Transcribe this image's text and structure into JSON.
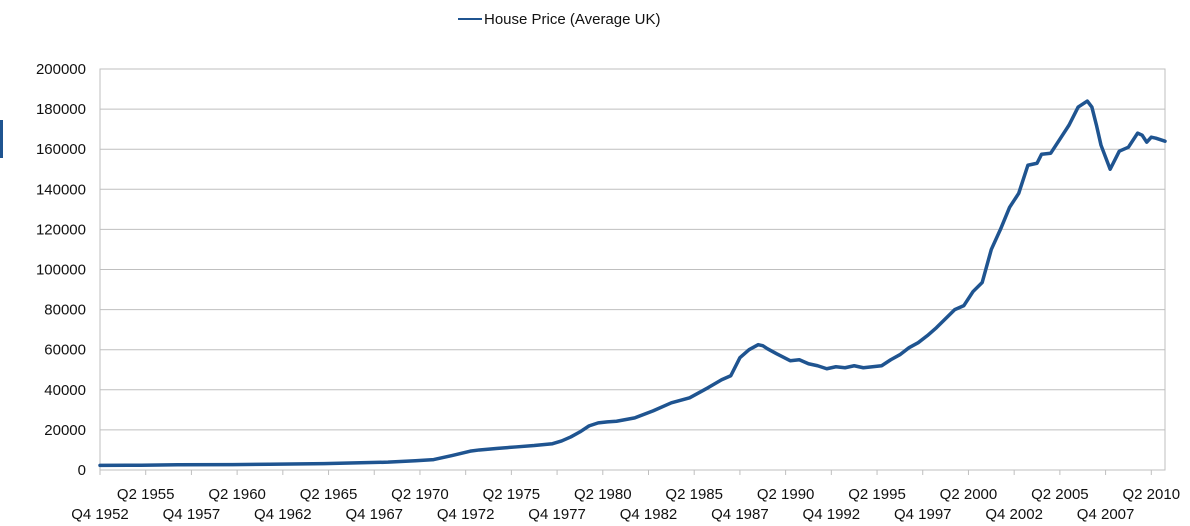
{
  "chart_data": {
    "type": "line",
    "title": "",
    "xlabel": "",
    "ylabel": "",
    "grid": true,
    "legend_placement": "top",
    "ylim": [
      0,
      200000
    ],
    "yticks": [
      0,
      20000,
      40000,
      60000,
      80000,
      100000,
      120000,
      140000,
      160000,
      180000,
      200000
    ],
    "xlim": [
      1952.75,
      2011.0
    ],
    "x_tick_labels": [
      {
        "x": 1952.75,
        "label": "Q4 1952",
        "row": 2
      },
      {
        "x": 1955.25,
        "label": "Q2 1955",
        "row": 1
      },
      {
        "x": 1957.75,
        "label": "Q4 1957",
        "row": 2
      },
      {
        "x": 1960.25,
        "label": "Q2 1960",
        "row": 1
      },
      {
        "x": 1962.75,
        "label": "Q4 1962",
        "row": 2
      },
      {
        "x": 1965.25,
        "label": "Q2 1965",
        "row": 1
      },
      {
        "x": 1967.75,
        "label": "Q4 1967",
        "row": 2
      },
      {
        "x": 1970.25,
        "label": "Q2 1970",
        "row": 1
      },
      {
        "x": 1972.75,
        "label": "Q4 1972",
        "row": 2
      },
      {
        "x": 1975.25,
        "label": "Q2 1975",
        "row": 1
      },
      {
        "x": 1977.75,
        "label": "Q4 1977",
        "row": 2
      },
      {
        "x": 1980.25,
        "label": "Q2 1980",
        "row": 1
      },
      {
        "x": 1982.75,
        "label": "Q4 1982",
        "row": 2
      },
      {
        "x": 1985.25,
        "label": "Q2 1985",
        "row": 1
      },
      {
        "x": 1987.75,
        "label": "Q4 1987",
        "row": 2
      },
      {
        "x": 1990.25,
        "label": "Q2 1990",
        "row": 1
      },
      {
        "x": 1992.75,
        "label": "Q4 1992",
        "row": 2
      },
      {
        "x": 1995.25,
        "label": "Q2 1995",
        "row": 1
      },
      {
        "x": 1997.75,
        "label": "Q4 1997",
        "row": 2
      },
      {
        "x": 2000.25,
        "label": "Q2 2000",
        "row": 1
      },
      {
        "x": 2002.75,
        "label": "Q4 2002",
        "row": 2
      },
      {
        "x": 2005.25,
        "label": "Q2 2005",
        "row": 1
      },
      {
        "x": 2007.75,
        "label": "Q4 2007",
        "row": 2
      },
      {
        "x": 2010.25,
        "label": "Q2 2010",
        "row": 1
      }
    ],
    "series": [
      {
        "name": "House Price (Average UK)",
        "color": "#1f5490",
        "x": [
          1952.75,
          1955.0,
          1957.0,
          1960.0,
          1962.0,
          1965.0,
          1967.0,
          1968.5,
          1970.0,
          1971.0,
          1972.0,
          1973.0,
          1973.5,
          1974.5,
          1975.5,
          1976.5,
          1977.5,
          1978.0,
          1978.5,
          1979.0,
          1979.5,
          1980.0,
          1980.5,
          1981.0,
          1982.0,
          1983.0,
          1984.0,
          1985.0,
          1986.0,
          1986.75,
          1987.25,
          1987.75,
          1988.25,
          1988.75,
          1989.0,
          1989.25,
          1989.75,
          1990.5,
          1991.0,
          1991.5,
          1992.0,
          1992.5,
          1993.0,
          1993.5,
          1994.0,
          1994.5,
          1995.0,
          1995.5,
          1996.0,
          1996.5,
          1997.0,
          1997.5,
          1998.0,
          1998.5,
          1999.0,
          1999.5,
          2000.0,
          2000.5,
          2001.0,
          2001.5,
          2002.0,
          2002.5,
          2003.0,
          2003.5,
          2004.0,
          2004.25,
          2004.75,
          2005.25,
          2005.75,
          2006.25,
          2006.75,
          2007.0,
          2007.25,
          2007.5,
          2008.0,
          2008.5,
          2009.0,
          2009.5,
          2009.75,
          2010.0,
          2010.25,
          2010.5,
          2011.0
        ],
        "values": [
          2300,
          2400,
          2600,
          2700,
          2900,
          3200,
          3600,
          3900,
          4600,
          5200,
          7200,
          9400,
          10000,
          10800,
          11500,
          12200,
          13100,
          14500,
          16500,
          19000,
          22000,
          23500,
          24000,
          24300,
          26000,
          29500,
          33500,
          36000,
          41000,
          45000,
          47000,
          56000,
          60000,
          62500,
          62000,
          60500,
          58000,
          54500,
          55000,
          53000,
          52000,
          50500,
          51500,
          51000,
          52000,
          51000,
          51500,
          52000,
          55000,
          57500,
          61000,
          63500,
          67000,
          71000,
          75500,
          80000,
          82000,
          89000,
          93500,
          110000,
          120000,
          131000,
          138000,
          152000,
          153000,
          157500,
          158000,
          165000,
          172000,
          181000,
          184000,
          181000,
          172000,
          162000,
          150000,
          159000,
          161000,
          168000,
          167000,
          163500,
          166000,
          165500,
          164000
        ]
      }
    ]
  }
}
